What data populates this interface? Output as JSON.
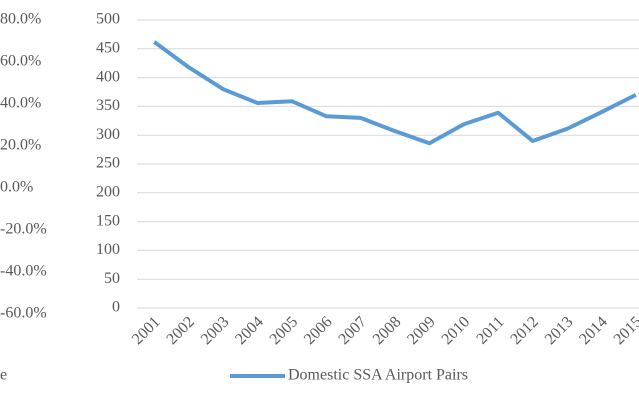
{
  "chart_data": {
    "type": "line",
    "categories": [
      "2001",
      "2002",
      "2003",
      "2004",
      "2005",
      "2006",
      "2007",
      "2008",
      "2009",
      "2010",
      "2011",
      "2012",
      "2013",
      "2014",
      "2015"
    ],
    "series": [
      {
        "name": "Domestic SSA Airport Pairs",
        "color": "#5b9bd5",
        "values": [
          462,
          418,
          380,
          356,
          359,
          333,
          330,
          307,
          286,
          319,
          339,
          290,
          311,
          340,
          370
        ]
      }
    ],
    "ylim": [
      0,
      500
    ],
    "yticks": [
      0,
      50,
      100,
      150,
      200,
      250,
      300,
      350,
      400,
      450,
      500
    ],
    "y2lim": [
      -60,
      80
    ],
    "y2ticks": [
      {
        "value": -60,
        "label": "-60.0%"
      },
      {
        "value": -40,
        "label": "-40.0%"
      },
      {
        "value": -20,
        "label": "-20.0%"
      },
      {
        "value": 0,
        "label": "0.0%"
      },
      {
        "value": 20,
        "label": "20.0%"
      },
      {
        "value": 40,
        "label": "40.0%"
      },
      {
        "value": 60,
        "label": "60.0%"
      },
      {
        "value": 80,
        "label": "80.0%"
      }
    ],
    "grid": true,
    "legend_partial": "e"
  }
}
